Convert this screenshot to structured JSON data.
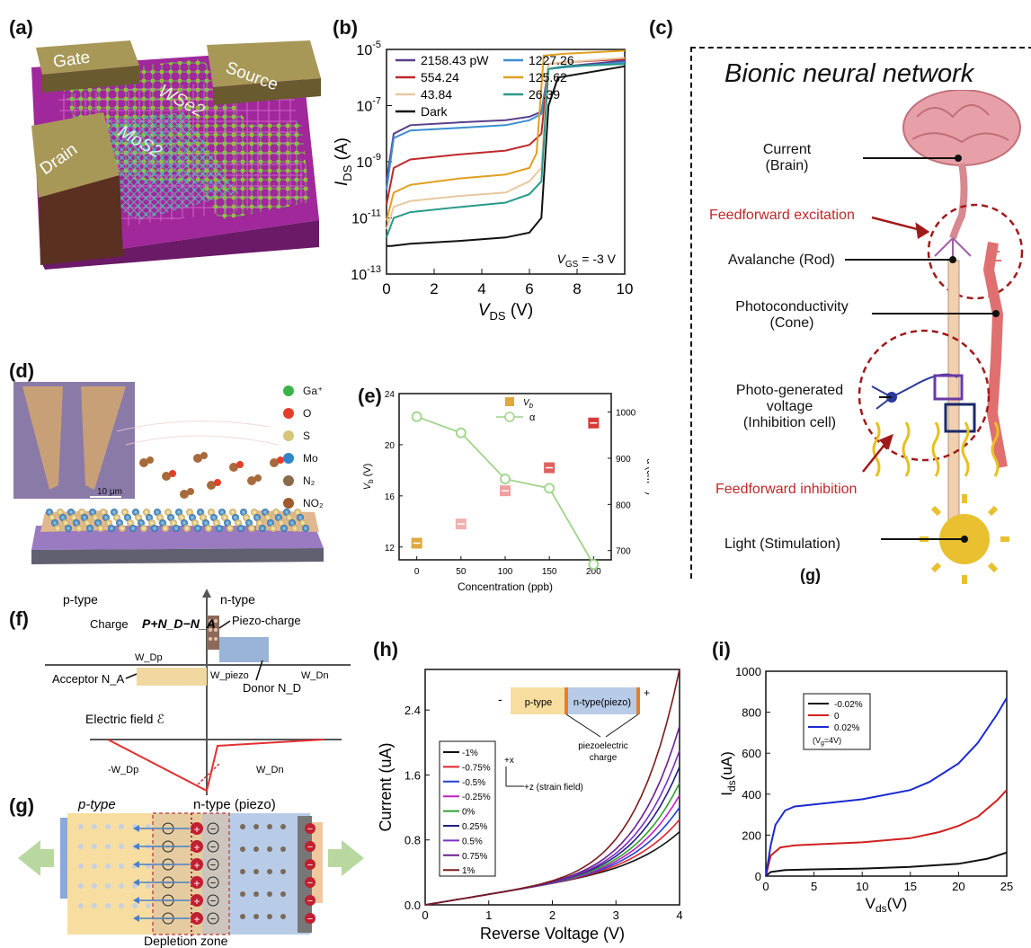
{
  "labels": {
    "a": "(a)",
    "b": "(b)",
    "c": "(c)",
    "d": "(d)",
    "e": "(e)",
    "f": "(f)",
    "g": "(g)",
    "h": "(h)",
    "i": "(i)",
    "g2": "(g)"
  },
  "panel_a": {
    "gate": "Gate",
    "source": "Source",
    "drain": "Drain",
    "wse2": "WSe2",
    "mos2": "MoS2"
  },
  "panel_c": {
    "title": "Bionic neural network",
    "items": [
      {
        "text": "Current\n(Brain)",
        "color": "#111"
      },
      {
        "text": "Feedforward excitation",
        "color": "#c0282b"
      },
      {
        "text": "Avalanche (Rod)",
        "color": "#111"
      },
      {
        "text": "Photoconductivity\n(Cone)",
        "color": "#111"
      },
      {
        "text": "Photo-generated\nvoltage\n(Inhibition cell)",
        "color": "#111"
      },
      {
        "text": "Feedforward inhibition",
        "color": "#c0282b"
      },
      {
        "text": "Light (Stimulation)",
        "color": "#111"
      }
    ]
  },
  "panel_d": {
    "scale": "10 μm",
    "legend": [
      {
        "name": "Ga⁺",
        "color": "#3cb44b"
      },
      {
        "name": "O",
        "color": "#e0402a"
      },
      {
        "name": "S",
        "color": "#d8c47a"
      },
      {
        "name": "Mo",
        "color": "#2e86c8"
      },
      {
        "name": "N₂",
        "color": "#8a6a4a"
      },
      {
        "name": "NO₂",
        "color": "#a05a30"
      }
    ]
  },
  "panel_f": {
    "ptype": "p-type",
    "ntype": "n-type",
    "charge": "Charge",
    "formula": "P+N_D−N_A",
    "piezo_charge": "Piezo-charge",
    "wdp": "W_Dp",
    "wpiezo": "W_piezo",
    "wdn": "W_Dn",
    "acceptor": "Acceptor N_A",
    "donor": "Donor N_D",
    "efield": "Electric field ℰ",
    "neg_wdp": "-W_Dp",
    "wdn2": "W_Dn"
  },
  "panel_g": {
    "ptype": "p-type",
    "ntype": "n-type (piezo)",
    "depletion": "Depletion zone"
  },
  "chart_data": [
    {
      "id": "b",
      "type": "line",
      "xlabel": "V_DS (V)",
      "ylabel": "I_DS (A)",
      "yscale": "log",
      "xlim": [
        0,
        10
      ],
      "ylim": [
        1e-13,
        1e-05
      ],
      "xticks": [
        0,
        2,
        4,
        6,
        8,
        10
      ],
      "yticks": [
        "10^-13",
        "10^-11",
        "10^-9",
        "10^-7",
        "10^-5"
      ],
      "annotation": "V_GS = -3 V",
      "legend": [
        "2158.43 pW",
        "1227.26",
        "554.24",
        "125.62",
        "43.84",
        "26.39",
        "Dark"
      ],
      "series": [
        {
          "name": "2158.43 pW",
          "color": "#5b3f8c",
          "x": [
            0,
            0.3,
            1,
            3,
            5,
            6,
            6.5,
            6.8,
            7.5,
            10
          ],
          "y": [
            2e-10,
            1e-08,
            2e-08,
            2.5e-08,
            3e-08,
            4e-08,
            6e-08,
            2e-06,
            2.5e-06,
            4e-06
          ]
        },
        {
          "name": "1227.26",
          "color": "#3b8ed0",
          "x": [
            0,
            0.3,
            1,
            3,
            5,
            6,
            6.5,
            6.8,
            7.5,
            10
          ],
          "y": [
            1e-10,
            7e-09,
            1.3e-08,
            1.6e-08,
            2e-08,
            3e-08,
            5e-08,
            2e-06,
            2.3e-06,
            3.5e-06
          ]
        },
        {
          "name": "554.24",
          "color": "#c0282b",
          "x": [
            0,
            0.3,
            1,
            3,
            5,
            6,
            6.5,
            6.8,
            7.5,
            10
          ],
          "y": [
            3e-11,
            6e-10,
            1.2e-09,
            1.8e-09,
            2.5e-09,
            4e-09,
            1e-08,
            3e-06,
            3.5e-06,
            4.5e-06
          ]
        },
        {
          "name": "125.62",
          "color": "#e0a020",
          "x": [
            0,
            0.3,
            1,
            3,
            5,
            6,
            6.3,
            6.6,
            7.5,
            10
          ],
          "y": [
            8e-12,
            8e-11,
            1.5e-10,
            2.5e-10,
            3.5e-10,
            6e-10,
            2e-09,
            6e-06,
            7e-06,
            9e-06
          ]
        },
        {
          "name": "43.84",
          "color": "#e8c8a0",
          "x": [
            0,
            0.3,
            1,
            3,
            5,
            6,
            6.5,
            6.8,
            7.5,
            10
          ],
          "y": [
            4e-12,
            2.5e-11,
            4e-11,
            6e-11,
            8e-11,
            2e-10,
            6e-10,
            3e-06,
            3.5e-06,
            5e-06
          ]
        },
        {
          "name": "26.39",
          "color": "#2a9a8a",
          "x": [
            0,
            0.3,
            1,
            3,
            5,
            6,
            6.5,
            6.8,
            7.5,
            10
          ],
          "y": [
            2e-12,
            1e-11,
            1.6e-11,
            2.4e-11,
            3.5e-11,
            7e-11,
            2e-10,
            2e-06,
            2.5e-06,
            3e-06
          ]
        },
        {
          "name": "Dark",
          "color": "#111111",
          "x": [
            0,
            0.2,
            1,
            3,
            5,
            6,
            6.5,
            6.8,
            7.2,
            10
          ],
          "y": [
            1e-12,
            1e-12,
            1.2e-12,
            1.5e-12,
            2e-12,
            3e-12,
            1e-11,
            1e-07,
            1e-06,
            2.5e-06
          ]
        }
      ]
    },
    {
      "id": "e",
      "type": "scatter",
      "xlabel": "Concentration (ppb)",
      "ylabel": "V_b (V)",
      "y2label": "α (cm⁻¹)",
      "xlim": [
        -20,
        220
      ],
      "ylim": [
        11,
        24
      ],
      "y2lim": [
        680,
        1040
      ],
      "xticks": [
        0,
        50,
        100,
        150,
        200
      ],
      "yticks": [
        12,
        16,
        20,
        24
      ],
      "y2ticks": [
        700,
        800,
        900,
        1000
      ],
      "legend": [
        "V_b",
        "α"
      ],
      "series": [
        {
          "name": "V_b",
          "marker": "square",
          "x": [
            0,
            50,
            100,
            150,
            200
          ],
          "y": [
            12.3,
            13.8,
            16.4,
            18.2,
            21.7
          ],
          "colors": [
            "#e0a840",
            "#f0b0b0",
            "#f0a0a0",
            "#e06060",
            "#d83a3a"
          ]
        },
        {
          "name": "α",
          "marker": "circle",
          "color": "#9fd48a",
          "x": [
            0,
            50,
            100,
            150,
            200
          ],
          "y": [
            990,
            955,
            855,
            835,
            670
          ]
        }
      ]
    },
    {
      "id": "h",
      "type": "line",
      "xlabel": "Reverse Voltage (V)",
      "ylabel": "Current (uA)",
      "xlim": [
        0,
        4
      ],
      "ylim": [
        0,
        2.9
      ],
      "xticks": [
        0,
        1,
        2,
        3,
        4
      ],
      "yticks": [
        0.0,
        0.8,
        1.6,
        2.4
      ],
      "inset": {
        "ptype": "p-type",
        "ntype": "n-type(piezo)",
        "minus": "-",
        "plus": "+",
        "charge": "piezoelectric\ncharge",
        "xaxis": "+z (strain field)",
        "yaxis": "+x"
      },
      "legend": [
        "-1%",
        "-0.75%",
        "-0.5%",
        "-0.25%",
        "0%",
        "0.25%",
        "0.5%",
        "0.75%",
        "1%"
      ],
      "series": [
        {
          "name": "-1%",
          "color": "#111111",
          "end": 0.9
        },
        {
          "name": "-0.75%",
          "color": "#e0202a",
          "end": 1.05
        },
        {
          "name": "-0.5%",
          "color": "#2040d0",
          "end": 1.2
        },
        {
          "name": "-0.25%",
          "color": "#c020c0",
          "end": 1.35
        },
        {
          "name": "0%",
          "color": "#30a030",
          "end": 1.5
        },
        {
          "name": "0.25%",
          "color": "#202080",
          "end": 1.7
        },
        {
          "name": "0.5%",
          "color": "#7a30c0",
          "end": 1.9
        },
        {
          "name": "0.75%",
          "color": "#6a2090",
          "end": 2.2
        },
        {
          "name": "1%",
          "color": "#7a1a1a",
          "end": 2.9
        }
      ]
    },
    {
      "id": "i",
      "type": "line",
      "xlabel": "V_ds(V)",
      "ylabel": "I_ds(uA)",
      "xlim": [
        0,
        25
      ],
      "ylim": [
        0,
        1000
      ],
      "xticks": [
        0,
        5,
        10,
        15,
        20,
        25
      ],
      "yticks": [
        0,
        200,
        400,
        600,
        800,
        1000
      ],
      "legend": [
        "-0.02%",
        "0",
        "0.02%"
      ],
      "legend_note": "(V_g=4V)",
      "series": [
        {
          "name": "-0.02%",
          "color": "#111111",
          "x": [
            0,
            0.5,
            2,
            5,
            10,
            15,
            20,
            23,
            25
          ],
          "y": [
            0,
            20,
            30,
            33,
            37,
            45,
            60,
            85,
            115
          ]
        },
        {
          "name": "0",
          "color": "#d02020",
          "x": [
            0,
            0.5,
            1.5,
            3,
            5,
            10,
            15,
            18,
            20,
            22,
            24,
            25
          ],
          "y": [
            0,
            100,
            140,
            150,
            155,
            165,
            185,
            215,
            245,
            290,
            370,
            420
          ]
        },
        {
          "name": "0.02%",
          "color": "#1a2ad0",
          "x": [
            0,
            0.5,
            1,
            2,
            3,
            5,
            10,
            15,
            17,
            20,
            22,
            24,
            25
          ],
          "y": [
            0,
            150,
            250,
            320,
            340,
            350,
            375,
            420,
            460,
            550,
            650,
            790,
            870
          ]
        }
      ]
    }
  ]
}
